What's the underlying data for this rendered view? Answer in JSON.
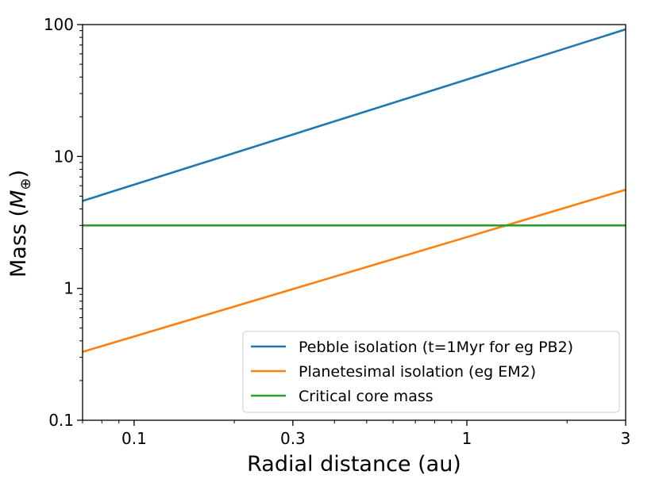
{
  "chart_data": {
    "type": "line",
    "title": "",
    "xlabel": "Radial distance (au)",
    "ylabel_prefix": "Mass (",
    "ylabel_symbol": "M",
    "ylabel_sub": "⊕",
    "ylabel_suffix": ")",
    "xscale": "log",
    "yscale": "log",
    "xlim": [
      0.07,
      3
    ],
    "ylim": [
      0.1,
      100
    ],
    "x_ticks": [
      {
        "value": 0.1,
        "label": "0.1"
      },
      {
        "value": 0.3,
        "label": "0.3"
      },
      {
        "value": 1,
        "label": "1"
      },
      {
        "value": 3,
        "label": "3"
      }
    ],
    "y_ticks": [
      {
        "value": 0.1,
        "label": "0.1"
      },
      {
        "value": 1,
        "label": "1"
      },
      {
        "value": 10,
        "label": "10"
      },
      {
        "value": 100,
        "label": "100"
      }
    ],
    "legend_position": "lower-right",
    "series": [
      {
        "name": "Pebble isolation (t=1Myr for eg PB2)",
        "color": "#1f77b4",
        "x": [
          0.07,
          3
        ],
        "y": [
          4.6,
          92
        ]
      },
      {
        "name": "Planetesimal isolation (eg EM2)",
        "color": "#ff7f0e",
        "x": [
          0.07,
          3
        ],
        "y": [
          0.33,
          5.6
        ]
      },
      {
        "name": "Critical core mass",
        "color": "#2ca02c",
        "x": [
          0.07,
          3
        ],
        "y": [
          3,
          3
        ]
      }
    ]
  }
}
